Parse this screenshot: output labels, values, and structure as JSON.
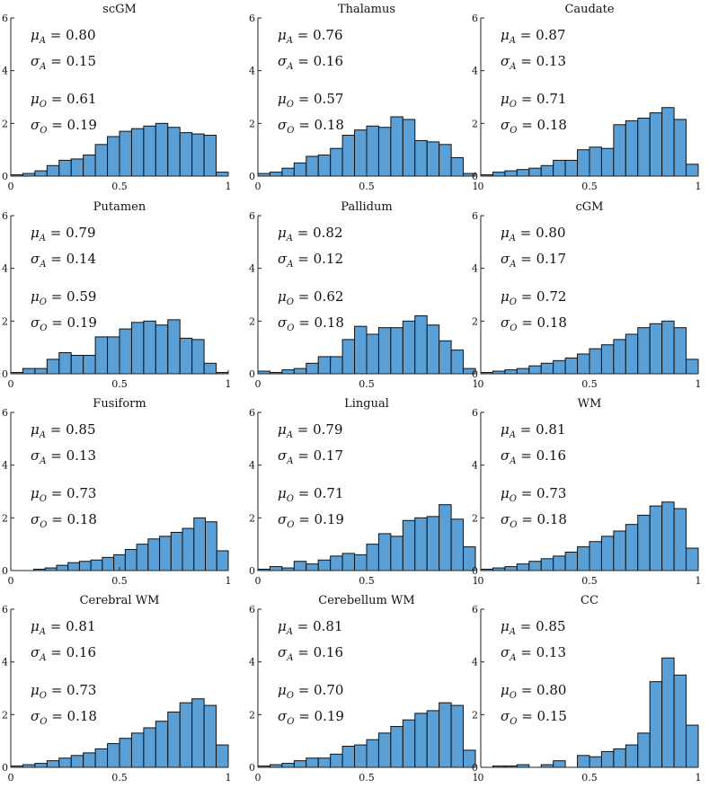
{
  "colors": {
    "bar_fill": "#5aa0d6",
    "bar_edge": "#111111",
    "axis": "#222222",
    "background": "#ffffff"
  },
  "chart_data": [
    {
      "type": "bar",
      "title": "scGM",
      "xlim": [
        0,
        1
      ],
      "ylim": [
        0,
        6
      ],
      "xticks": [
        "0",
        "0.5",
        "1"
      ],
      "yticks": [
        "0",
        "2",
        "4",
        "6"
      ],
      "values": [
        0.05,
        0.1,
        0.2,
        0.4,
        0.6,
        0.65,
        0.8,
        1.2,
        1.5,
        1.7,
        1.8,
        1.9,
        2.0,
        1.85,
        1.65,
        1.6,
        1.55,
        0.15
      ],
      "stats": {
        "mu_a": "0.80",
        "sigma_a": "0.15",
        "mu_o": "0.61",
        "sigma_o": "0.19"
      }
    },
    {
      "type": "bar",
      "title": "Thalamus",
      "xlim": [
        0,
        1
      ],
      "ylim": [
        0,
        6
      ],
      "xticks": [
        "0",
        "0.5",
        "1"
      ],
      "yticks": [
        "0",
        "2",
        "4",
        "6"
      ],
      "values": [
        0.1,
        0.15,
        0.3,
        0.5,
        0.75,
        0.8,
        1.05,
        1.55,
        1.75,
        1.9,
        1.85,
        2.25,
        2.15,
        1.35,
        1.3,
        1.2,
        0.7,
        0.1
      ],
      "stats": {
        "mu_a": "0.76",
        "sigma_a": "0.16",
        "mu_o": "0.57",
        "sigma_o": "0.18"
      }
    },
    {
      "type": "bar",
      "title": "Caudate",
      "xlim": [
        0,
        1
      ],
      "ylim": [
        0,
        6
      ],
      "xticks": [
        "0",
        "0.5",
        "1"
      ],
      "yticks": [
        "0",
        "2",
        "4",
        "6"
      ],
      "values": [
        0.05,
        0.15,
        0.2,
        0.25,
        0.3,
        0.4,
        0.6,
        0.6,
        1.0,
        1.1,
        1.05,
        1.95,
        2.1,
        2.2,
        2.4,
        2.6,
        2.15,
        0.45
      ],
      "stats": {
        "mu_a": "0.87",
        "sigma_a": "0.13",
        "mu_o": "0.71",
        "sigma_o": "0.18"
      }
    },
    {
      "type": "bar",
      "title": "Putamen",
      "xlim": [
        0,
        1
      ],
      "ylim": [
        0,
        6
      ],
      "xticks": [
        "0",
        "0.5",
        "1"
      ],
      "yticks": [
        "0",
        "2",
        "4",
        "6"
      ],
      "values": [
        0.05,
        0.2,
        0.2,
        0.55,
        0.8,
        0.7,
        0.7,
        1.4,
        1.4,
        1.7,
        1.95,
        2.0,
        1.85,
        2.05,
        1.35,
        1.3,
        0.4,
        0.05
      ],
      "stats": {
        "mu_a": "0.79",
        "sigma_a": "0.14",
        "mu_o": "0.59",
        "sigma_o": "0.19"
      }
    },
    {
      "type": "bar",
      "title": "Pallidum",
      "xlim": [
        0,
        1
      ],
      "ylim": [
        0,
        6
      ],
      "xticks": [
        "0",
        "0.5",
        "1"
      ],
      "yticks": [
        "0",
        "2",
        "4",
        "6"
      ],
      "values": [
        0.1,
        0.05,
        0.15,
        0.2,
        0.4,
        0.65,
        0.65,
        1.3,
        1.8,
        1.5,
        1.75,
        1.75,
        2.0,
        2.2,
        1.85,
        1.25,
        0.9,
        0.2
      ],
      "stats": {
        "mu_a": "0.82",
        "sigma_a": "0.12",
        "mu_o": "0.62",
        "sigma_o": "0.18"
      }
    },
    {
      "type": "bar",
      "title": "cGM",
      "xlim": [
        0,
        1
      ],
      "ylim": [
        0,
        6
      ],
      "xticks": [
        "0",
        "0.5",
        "1"
      ],
      "yticks": [
        "0",
        "2",
        "4",
        "6"
      ],
      "values": [
        0.05,
        0.1,
        0.15,
        0.2,
        0.3,
        0.4,
        0.5,
        0.6,
        0.75,
        0.95,
        1.1,
        1.3,
        1.5,
        1.75,
        1.9,
        2.0,
        1.75,
        0.55
      ],
      "stats": {
        "mu_a": "0.80",
        "sigma_a": "0.17",
        "mu_o": "0.72",
        "sigma_o": "0.18"
      }
    },
    {
      "type": "bar",
      "title": "Fusiform",
      "xlim": [
        0,
        1
      ],
      "ylim": [
        0,
        6
      ],
      "xticks": [
        "0",
        "0.5",
        "1"
      ],
      "yticks": [
        "0",
        "2",
        "4",
        "6"
      ],
      "values": [
        0.0,
        0.0,
        0.05,
        0.1,
        0.2,
        0.3,
        0.35,
        0.4,
        0.5,
        0.6,
        0.8,
        1.0,
        1.2,
        1.3,
        1.45,
        1.6,
        2.0,
        1.85,
        0.75
      ],
      "stats": {
        "mu_a": "0.85",
        "sigma_a": "0.13",
        "mu_o": "0.73",
        "sigma_o": "0.18"
      }
    },
    {
      "type": "bar",
      "title": "Lingual",
      "xlim": [
        0,
        1
      ],
      "ylim": [
        0,
        6
      ],
      "xticks": [
        "0",
        "0.5",
        "1"
      ],
      "yticks": [
        "0",
        "2",
        "4",
        "6"
      ],
      "values": [
        0.05,
        0.15,
        0.1,
        0.35,
        0.25,
        0.4,
        0.55,
        0.65,
        0.6,
        1.0,
        1.4,
        1.3,
        1.9,
        2.0,
        2.05,
        2.5,
        1.95,
        0.9
      ],
      "stats": {
        "mu_a": "0.79",
        "sigma_a": "0.17",
        "mu_o": "0.71",
        "sigma_o": "0.19"
      }
    },
    {
      "type": "bar",
      "title": "WM",
      "xlim": [
        0,
        1
      ],
      "ylim": [
        0,
        6
      ],
      "xticks": [
        "0",
        "0.5",
        "1"
      ],
      "yticks": [
        "0",
        "2",
        "4",
        "6"
      ],
      "values": [
        0.05,
        0.1,
        0.15,
        0.25,
        0.35,
        0.45,
        0.55,
        0.7,
        0.9,
        1.1,
        1.3,
        1.5,
        1.75,
        2.1,
        2.45,
        2.6,
        2.35,
        0.85
      ],
      "stats": {
        "mu_a": "0.81",
        "sigma_a": "0.16",
        "mu_o": "0.73",
        "sigma_o": "0.18"
      }
    },
    {
      "type": "bar",
      "title": "Cerebral WM",
      "xlim": [
        0,
        1
      ],
      "ylim": [
        0,
        6
      ],
      "xticks": [
        "0",
        "0.5",
        "1"
      ],
      "yticks": [
        "0",
        "2",
        "4",
        "6"
      ],
      "values": [
        0.05,
        0.1,
        0.15,
        0.25,
        0.35,
        0.45,
        0.55,
        0.7,
        0.9,
        1.1,
        1.3,
        1.5,
        1.75,
        2.1,
        2.45,
        2.6,
        2.35,
        0.85
      ],
      "stats": {
        "mu_a": "0.81",
        "sigma_a": "0.16",
        "mu_o": "0.73",
        "sigma_o": "0.18"
      }
    },
    {
      "type": "bar",
      "title": "Cerebellum WM",
      "xlim": [
        0,
        1
      ],
      "ylim": [
        0,
        6
      ],
      "xticks": [
        "0",
        "0.5",
        "1"
      ],
      "yticks": [
        "0",
        "2",
        "4",
        "6"
      ],
      "values": [
        0.05,
        0.1,
        0.15,
        0.25,
        0.35,
        0.35,
        0.5,
        0.8,
        0.85,
        1.05,
        1.3,
        1.55,
        1.8,
        2.05,
        2.15,
        2.45,
        2.35,
        0.65
      ],
      "stats": {
        "mu_a": "0.81",
        "sigma_a": "0.16",
        "mu_o": "0.70",
        "sigma_o": "0.19"
      }
    },
    {
      "type": "bar",
      "title": "CC",
      "xlim": [
        0,
        1
      ],
      "ylim": [
        0,
        6
      ],
      "xticks": [
        "0",
        "0.5",
        "1"
      ],
      "yticks": [
        "0",
        "2",
        "4",
        "6"
      ],
      "values": [
        0.0,
        0.05,
        0.05,
        0.1,
        0.0,
        0.1,
        0.25,
        0.0,
        0.45,
        0.4,
        0.6,
        0.7,
        0.85,
        1.3,
        3.25,
        4.15,
        3.5,
        1.6
      ],
      "stats": {
        "mu_a": "0.85",
        "sigma_a": "0.13",
        "mu_o": "0.80",
        "sigma_o": "0.15"
      }
    }
  ]
}
